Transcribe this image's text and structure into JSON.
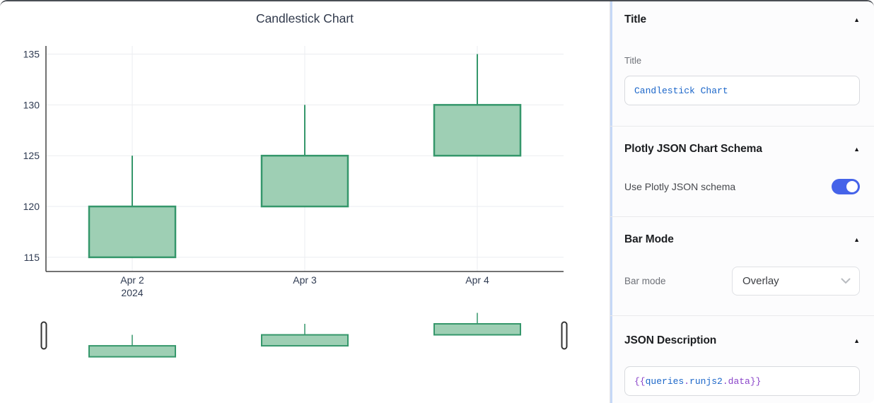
{
  "chart": {
    "title": "Candlestick Chart"
  },
  "chart_data": {
    "type": "candlestick",
    "title": "Candlestick Chart",
    "x_labels": [
      "Apr 2",
      "Apr 3",
      "Apr 4"
    ],
    "x_sub_label": "2024",
    "open": [
      115,
      120,
      125
    ],
    "high": [
      125,
      130,
      135
    ],
    "low": [
      115,
      120,
      125
    ],
    "close": [
      120,
      125,
      130
    ],
    "y_ticks": [
      115,
      120,
      125,
      130,
      135
    ],
    "ylim": [
      113.6,
      135.8
    ],
    "grid": true,
    "legend": false,
    "rangeslider": true,
    "increasing_line_color": "#35976b",
    "increasing_fill_color": "#9ecfb4",
    "grid_color": "#ebedf0",
    "axis_color": "#444444"
  },
  "inspector": {
    "collapse_icon": "▲",
    "accent_color": "#4563e9",
    "title_section": {
      "header": "Title",
      "label": "Title",
      "value": "Candlestick Chart"
    },
    "schema_section": {
      "header": "Plotly JSON Chart Schema",
      "toggle_label": "Use Plotly JSON schema",
      "toggle_on": true
    },
    "barmode_section": {
      "header": "Bar Mode",
      "label": "Bar mode",
      "value": "Overlay"
    },
    "json_section": {
      "header": "JSON Description",
      "value": "{{queries.runjs2.data}}",
      "value_parts": [
        {
          "text": "{{",
          "color": "purple"
        },
        {
          "text": "queries",
          "color": "blue"
        },
        {
          "text": ".",
          "color": "purple"
        },
        {
          "text": "runjs2",
          "color": "blue"
        },
        {
          "text": ".",
          "color": "purple"
        },
        {
          "text": "data",
          "color": "purple"
        },
        {
          "text": "}}",
          "color": "purple"
        }
      ]
    }
  }
}
